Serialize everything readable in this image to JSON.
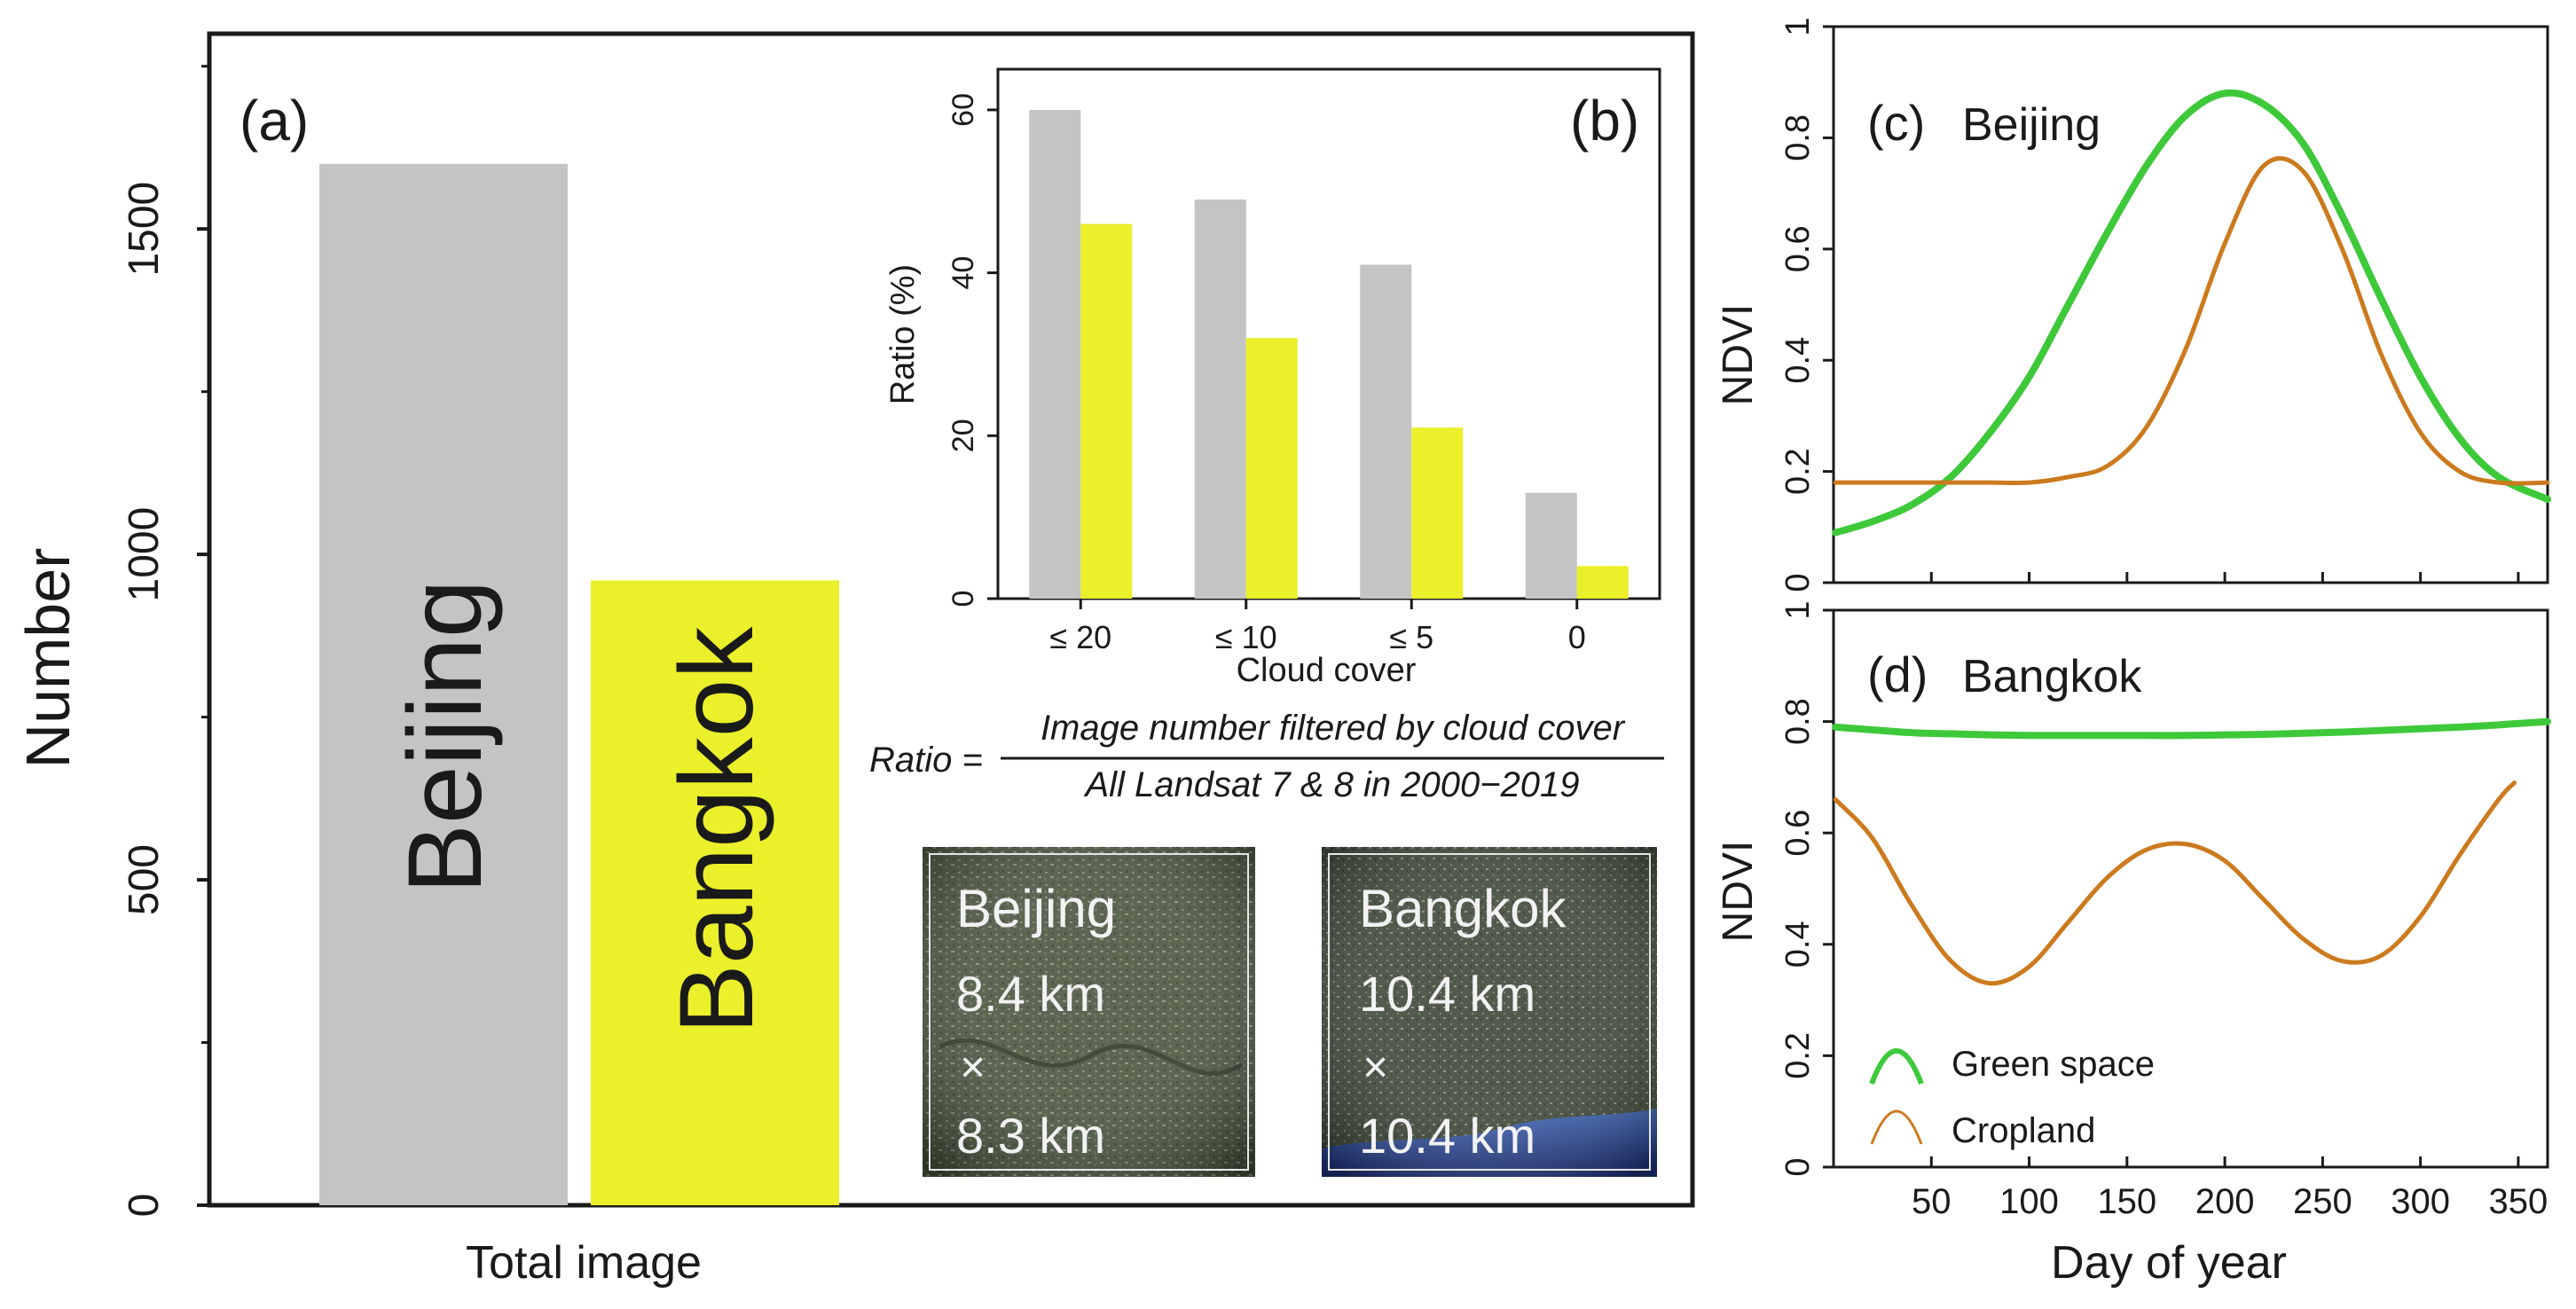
{
  "colors": {
    "gray": "#c4c4c4",
    "yellow": "#eaf02a",
    "green": "#3ec93a",
    "orange": "#cc7a1e",
    "axis": "#1a1a1a"
  },
  "chart_data": [
    {
      "type": "bar",
      "panel_label": "(a)",
      "categories": [
        "Beijing",
        "Bangkok"
      ],
      "values": [
        1600,
        960
      ],
      "bar_labels": [
        "Beijing",
        "Bangkok"
      ],
      "xlabel": "Total image",
      "ylabel": "Number",
      "ylim": [
        0,
        1800
      ],
      "yticks": [
        0,
        500,
        1000,
        1500
      ],
      "ytick_labels": [
        "0",
        "500",
        "1000",
        "1500"
      ]
    },
    {
      "type": "bar",
      "panel_label": "(b)",
      "categories": [
        "≤ 20",
        "≤ 10",
        "≤ 5",
        "0"
      ],
      "series": [
        {
          "name": "Beijing",
          "values": [
            60,
            49,
            41,
            13
          ]
        },
        {
          "name": "Bangkok",
          "values": [
            46,
            32,
            21,
            4
          ]
        }
      ],
      "xlabel": "Cloud cover",
      "ylabel": "Ratio (%)",
      "ylim": [
        0,
        65
      ],
      "yticks": [
        0,
        20,
        40,
        60
      ],
      "ytick_labels": [
        "0",
        "20",
        "40",
        "60"
      ]
    },
    {
      "type": "line",
      "panel_label": "(c)",
      "panel_title": "Beijing",
      "x": [
        1,
        20,
        40,
        60,
        80,
        100,
        120,
        140,
        160,
        180,
        200,
        220,
        240,
        260,
        280,
        300,
        320,
        340,
        365
      ],
      "series": [
        {
          "name": "Green space",
          "values": [
            0.09,
            0.11,
            0.14,
            0.19,
            0.27,
            0.37,
            0.5,
            0.63,
            0.75,
            0.84,
            0.88,
            0.86,
            0.79,
            0.66,
            0.51,
            0.37,
            0.26,
            0.19,
            0.15
          ]
        },
        {
          "name": "Cropland",
          "values": [
            0.18,
            0.18,
            0.18,
            0.18,
            0.18,
            0.18,
            0.19,
            0.21,
            0.28,
            0.42,
            0.61,
            0.75,
            0.74,
            0.6,
            0.41,
            0.27,
            0.2,
            0.18,
            0.18
          ]
        }
      ],
      "ylabel": "NDVI",
      "xlim": [
        0,
        365
      ],
      "ylim": [
        0,
        1
      ],
      "yticks": [
        0,
        0.2,
        0.4,
        0.6,
        0.8,
        1
      ],
      "ytick_labels": [
        "0",
        "0.2",
        "0.4",
        "0.6",
        "0.8",
        "1"
      ]
    },
    {
      "type": "line",
      "panel_label": "(d)",
      "panel_title": "Bangkok",
      "x": [
        1,
        20,
        40,
        60,
        80,
        100,
        120,
        140,
        160,
        180,
        200,
        220,
        240,
        260,
        280,
        300,
        320,
        340,
        348,
        365
      ],
      "series": [
        {
          "name": "Green space",
          "values": [
            0.79,
            0.785,
            0.78,
            0.778,
            0.776,
            0.775,
            0.775,
            0.775,
            0.775,
            0.775,
            0.776,
            0.777,
            0.779,
            0.781,
            0.784,
            0.787,
            0.79,
            0.794,
            0.796,
            0.8
          ]
        },
        {
          "name": "Cropland",
          "values": [
            0.66,
            0.59,
            0.47,
            0.37,
            0.33,
            0.36,
            0.44,
            0.52,
            0.57,
            0.58,
            0.55,
            0.48,
            0.41,
            0.37,
            0.38,
            0.45,
            0.56,
            0.66,
            0.69,
            null
          ]
        }
      ],
      "xlabel": "Day of year",
      "ylabel": "NDVI",
      "xlim": [
        0,
        365
      ],
      "ylim": [
        0,
        1
      ],
      "xticks": [
        50,
        100,
        150,
        200,
        250,
        300,
        350
      ],
      "xtick_labels": [
        "50",
        "100",
        "150",
        "200",
        "250",
        "300",
        "350"
      ],
      "yticks": [
        0,
        0.2,
        0.4,
        0.6,
        0.8,
        1
      ],
      "ytick_labels": [
        "0",
        "0.2",
        "0.4",
        "0.6",
        "0.8",
        "1"
      ],
      "legend": {
        "position": "bottom-left",
        "entries": [
          "Green space",
          "Cropland"
        ]
      }
    }
  ],
  "formula": {
    "lhs": "Ratio =",
    "numerator": "Image number filtered by cloud cover",
    "denominator": "All Landsat 7 & 8 in 2000−2019"
  },
  "thumbnails": [
    {
      "city": "Beijing",
      "width": "8.4 km",
      "times": "×",
      "height": "8.3 km"
    },
    {
      "city": "Bangkok",
      "width": "10.4 km",
      "times": "×",
      "height": "10.4 km"
    }
  ]
}
